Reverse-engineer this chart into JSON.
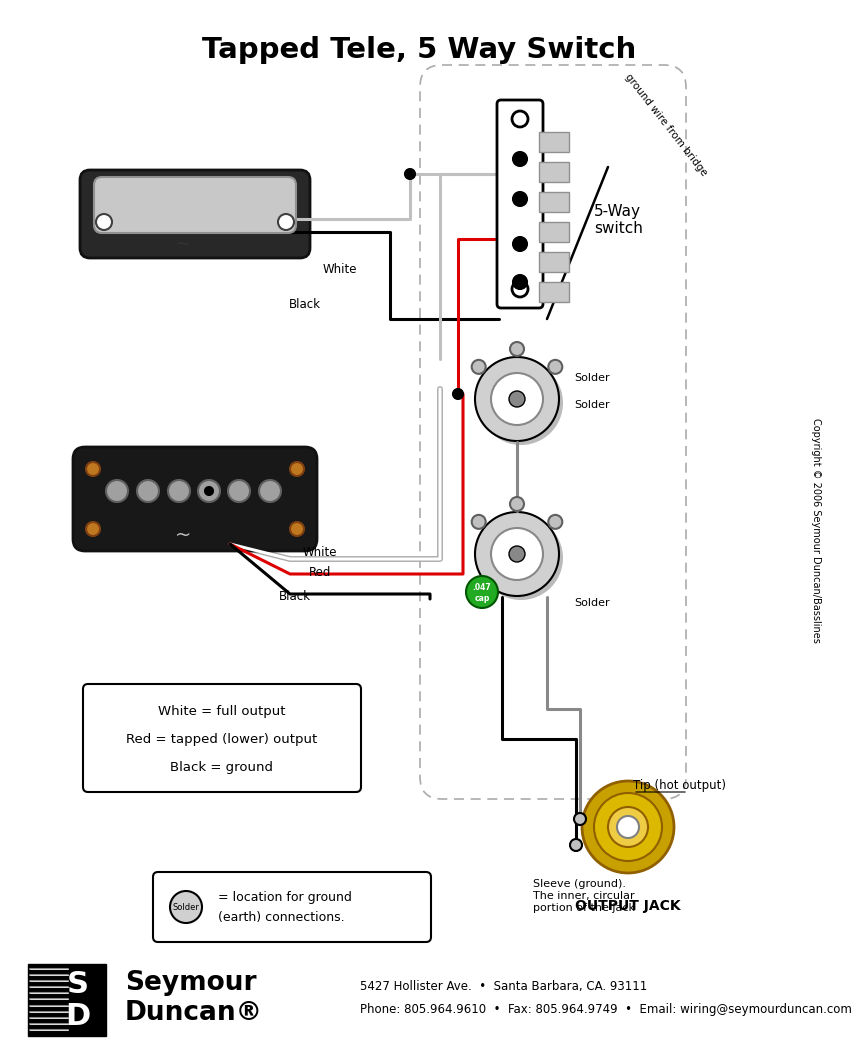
{
  "title": "Tapped Tele, 5 Way Switch",
  "title_fontsize": 20,
  "bg_color": "#ffffff",
  "footer_line1": "5427 Hollister Ave.  •  Santa Barbara, CA. 93111",
  "footer_line2": "Phone: 805.964.9610  •  Fax: 805.964.9749  •  Email: wiring@seymourduncan.com",
  "legend_box_text": [
    "White = full output",
    "Red = tapped (lower) output",
    "Black = ground"
  ],
  "copyright_text": "Copyright © 2006 Seymour Duncan/Basslines",
  "switch_label": "5-Way\nswitch",
  "output_jack_label": "OUTPUT JACK",
  "tip_label": "Tip (hot output)",
  "sleeve_label": "Sleeve (ground).\nThe inner, circular\nportion of the jack",
  "ground_wire_label": "ground wire from bridge",
  "solder_label": "Solder",
  "wire_gray": "#c0c0c0",
  "wire_red": "#dd0000",
  "wire_black": "#000000",
  "wire_white": "#ffffff"
}
